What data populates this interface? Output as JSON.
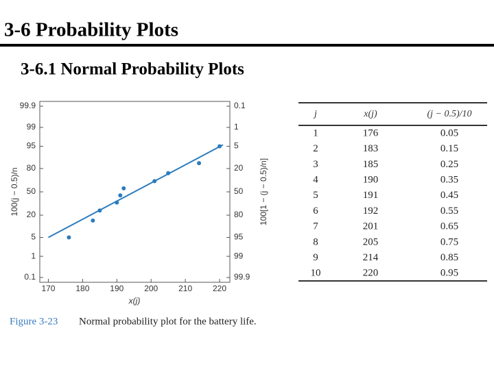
{
  "slide": {
    "title": "3-6   Probability Plots",
    "subtitle": "3-6.1 Normal Probability Plots",
    "figure_label": "Figure 3-23",
    "caption": "Normal probability plot for the battery life."
  },
  "chart_data": {
    "type": "scatter",
    "yscale": "normal",
    "xlabel": "x(j)",
    "ylabel": "100(j − 0.5)/n",
    "y2label": "100[1 − (j − 0.5)/n]",
    "x": [
      176,
      183,
      185,
      190,
      191,
      192,
      201,
      205,
      214,
      220
    ],
    "values": [
      5,
      15,
      25,
      35,
      45,
      55,
      65,
      75,
      85,
      95
    ],
    "color": "#2b7bbd",
    "fit_line": {
      "x": [
        170,
        221
      ],
      "y": [
        5,
        95.5
      ],
      "color": "#2b7bbd"
    },
    "xlim": [
      167.5,
      223
    ],
    "xticks": [
      170,
      180,
      190,
      200,
      210,
      220
    ],
    "ylim": [
      0.1,
      99.9
    ],
    "yticks": [
      0.1,
      1,
      5,
      20,
      50,
      80,
      95,
      99,
      99.9
    ],
    "y2lim": [
      99.9,
      0.1
    ],
    "y2ticks": [
      99.9,
      99,
      95,
      80,
      50,
      20,
      5,
      1,
      0.1
    ]
  },
  "table": {
    "header": [
      "j",
      "x(j)",
      "(j − 0.5)/10"
    ],
    "rows": [
      [
        1,
        176,
        0.05
      ],
      [
        2,
        183,
        0.15
      ],
      [
        3,
        185,
        0.25
      ],
      [
        4,
        190,
        0.35
      ],
      [
        5,
        191,
        0.45
      ],
      [
        6,
        192,
        0.55
      ],
      [
        7,
        201,
        0.65
      ],
      [
        8,
        205,
        0.75
      ],
      [
        9,
        214,
        0.85
      ],
      [
        10,
        220,
        0.95
      ]
    ]
  }
}
